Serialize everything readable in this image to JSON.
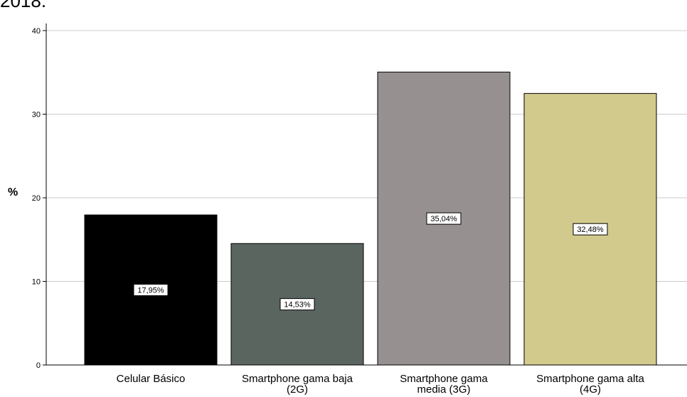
{
  "header": {
    "top_text": "2018."
  },
  "chart_data": {
    "type": "bar",
    "ylabel": "%",
    "ylim": [
      0,
      40
    ],
    "yticks": [
      0,
      10,
      20,
      30,
      40
    ],
    "grid": true,
    "categories": [
      [
        "Celular Básico"
      ],
      [
        "Smartphone gama baja",
        "(2G)"
      ],
      [
        "Smartphone gama",
        "media (3G)"
      ],
      [
        "Smartphone gama alta",
        "(4G)"
      ]
    ],
    "values": [
      17.95,
      14.53,
      35.04,
      32.48
    ],
    "data_labels": [
      "17,95%",
      "14,53%",
      "35,04%",
      "32,48%"
    ],
    "colors": [
      "#000000",
      "#5b6560",
      "#969190",
      "#d2c98c"
    ]
  }
}
